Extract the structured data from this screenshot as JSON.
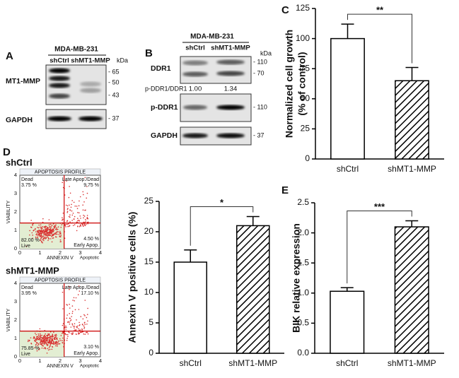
{
  "blots": {
    "A": {
      "panel": "A",
      "cell_line": "MDA-MB-231",
      "lanes": [
        "shCtrl",
        "shMT1-MMP"
      ],
      "kda": "kDa",
      "rows": [
        {
          "label": "MT1-MMP",
          "markers": [
            "- 65",
            "- 50",
            "- 43"
          ]
        },
        {
          "label": "GAPDH",
          "markers": [
            "- 37"
          ]
        }
      ]
    },
    "B": {
      "panel": "B",
      "cell_line": "MDA-MB-231",
      "lanes": [
        "shCtrl",
        "shMT1-MMP"
      ],
      "kda": "kDa",
      "rows": [
        {
          "label": "DDR1",
          "markers": [
            "- 110",
            "- 70"
          ]
        },
        {
          "label": "p-DDR1",
          "markers": [
            "- 110"
          ]
        },
        {
          "label": "GAPDH",
          "markers": [
            "- 37"
          ]
        }
      ],
      "ratio": {
        "label": "p-DDR1/DDR1",
        "values": [
          "1.00",
          "1.34"
        ]
      }
    }
  },
  "flow": {
    "panel": "D",
    "profile": "APOPTOSIS PROFILE",
    "x_label": "ANNEXIN V",
    "y_label": "VIABILITY",
    "ticks": [
      0,
      1,
      2,
      3,
      4
    ],
    "quadrant_names": {
      "dead": "Dead",
      "late": "Late Apop./Dead",
      "live": "Live",
      "early": "Early Apop.",
      "apoptotic": "Apoptotic"
    },
    "samples": [
      {
        "name": "shCtrl",
        "dead": "3.75 %",
        "late": "9.75 %",
        "live": "82.00 %",
        "early": "4.50 %"
      },
      {
        "name": "shMT1-MMP",
        "dead": "3.95 %",
        "late": "17.10 %",
        "live": "75.85 %",
        "early": "3.10 %"
      }
    ]
  },
  "chart_data": [
    {
      "type": "bar",
      "panel": "C",
      "ylabel": [
        "Normalized cell growth",
        "(% of control)"
      ],
      "categories": [
        "shCtrl",
        "shMT1-MMP"
      ],
      "values": [
        100,
        65
      ],
      "errors": [
        12,
        11
      ],
      "fills": [
        "white",
        "hatch"
      ],
      "ylim": [
        0,
        125
      ],
      "yticks": [
        0,
        25,
        50,
        75,
        100,
        125
      ],
      "annotation": "**"
    },
    {
      "type": "bar",
      "ylabel": [
        "Annexin V positive cells (%)"
      ],
      "categories": [
        "shCtrl",
        "shMT1-MMP"
      ],
      "values": [
        15,
        21
      ],
      "errors": [
        2,
        1.5
      ],
      "fills": [
        "white",
        "hatch"
      ],
      "ylim": [
        0,
        25
      ],
      "yticks": [
        0,
        5,
        10,
        15,
        20,
        25
      ],
      "annotation": "*"
    },
    {
      "type": "bar",
      "panel": "E",
      "ylabel": [
        "BIK relative expression"
      ],
      "categories": [
        "shCtrl",
        "shMT1-MMP"
      ],
      "values": [
        1.03,
        2.1
      ],
      "errors": [
        0.06,
        0.1
      ],
      "fills": [
        "white",
        "hatch"
      ],
      "ylim": [
        0,
        2.5
      ],
      "yticks": [
        {
          "value": 0,
          "label": "0.0"
        },
        0.5,
        {
          "value": 1,
          "label": "1.0"
        },
        1.5,
        {
          "value": 2,
          "label": "2.0"
        },
        2.5
      ],
      "annotation": "***"
    }
  ]
}
